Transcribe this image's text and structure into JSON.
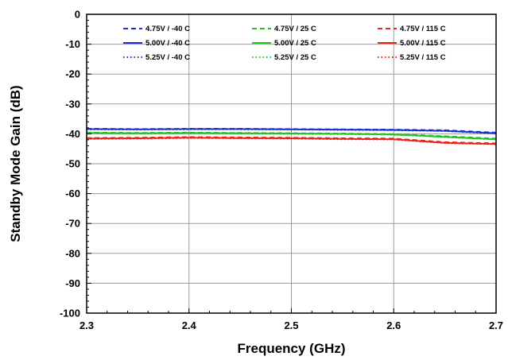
{
  "chart_data": {
    "type": "line",
    "xlabel": "Frequency (GHz)",
    "ylabel": "Standby Mode Gain (dB)",
    "xlim": [
      2.3,
      2.7
    ],
    "ylim": [
      -100,
      0
    ],
    "xticks": [
      2.3,
      2.4,
      2.5,
      2.6,
      2.7
    ],
    "yticks": [
      0,
      -10,
      -20,
      -30,
      -40,
      -50,
      -60,
      -70,
      -80,
      -90,
      -100
    ],
    "xtick_labels": [
      "2.3",
      "2.4",
      "2.5",
      "2.6",
      "2.7"
    ],
    "ytick_labels": [
      "0",
      "-10",
      "-20",
      "-30",
      "-40",
      "-50",
      "-60",
      "-70",
      "-80",
      "-90",
      "-100"
    ],
    "grid": true,
    "legend_position": "top",
    "legend_columns": 3,
    "x": [
      2.3,
      2.35,
      2.4,
      2.45,
      2.5,
      2.55,
      2.6,
      2.65,
      2.7
    ],
    "series": [
      {
        "name": "4.75V / -40 C",
        "color": "#1f2fd0",
        "dash": "dashed",
        "values": [
          -38.3,
          -38.4,
          -38.3,
          -38.3,
          -38.4,
          -38.5,
          -38.6,
          -38.8,
          -39.6
        ]
      },
      {
        "name": "5.00V / -40 C",
        "color": "#1f2fd0",
        "dash": "solid",
        "values": [
          -38.4,
          -38.5,
          -38.4,
          -38.4,
          -38.5,
          -38.6,
          -38.7,
          -39.0,
          -39.8
        ]
      },
      {
        "name": "5.25V / -40 C",
        "color": "#1f2fd0",
        "dash": "dotted",
        "values": [
          -38.5,
          -38.6,
          -38.5,
          -38.5,
          -38.6,
          -38.7,
          -38.8,
          -39.1,
          -39.9
        ]
      },
      {
        "name": "4.75V / 25 C",
        "color": "#22c322",
        "dash": "dashed",
        "values": [
          -39.6,
          -39.7,
          -39.6,
          -39.7,
          -39.8,
          -39.9,
          -40.1,
          -40.8,
          -41.6
        ]
      },
      {
        "name": "5.00V / 25 C",
        "color": "#22c322",
        "dash": "solid",
        "values": [
          -39.7,
          -39.8,
          -39.7,
          -39.8,
          -39.9,
          -40.0,
          -40.2,
          -41.0,
          -41.8
        ]
      },
      {
        "name": "5.25V / 25 C",
        "color": "#22c322",
        "dash": "dotted",
        "values": [
          -39.8,
          -39.9,
          -39.8,
          -39.9,
          -40.0,
          -40.1,
          -40.3,
          -41.1,
          -41.9
        ]
      },
      {
        "name": "4.75V / 115 C",
        "color": "#e8241c",
        "dash": "dashed",
        "values": [
          -41.4,
          -41.3,
          -41.1,
          -41.2,
          -41.3,
          -41.5,
          -41.6,
          -42.8,
          -43.2
        ]
      },
      {
        "name": "5.00V / 115 C",
        "color": "#e8241c",
        "dash": "solid",
        "values": [
          -41.6,
          -41.5,
          -41.3,
          -41.4,
          -41.5,
          -41.7,
          -41.8,
          -43.0,
          -43.4
        ]
      },
      {
        "name": "5.25V / 115 C",
        "color": "#e8241c",
        "dash": "dotted",
        "values": [
          -41.7,
          -41.6,
          -41.4,
          -41.5,
          -41.6,
          -41.8,
          -41.9,
          -43.1,
          -43.5
        ]
      }
    ]
  }
}
